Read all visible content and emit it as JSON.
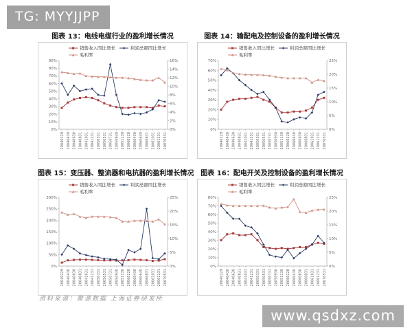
{
  "header": {
    "badge": "TG: MYYJJPP"
  },
  "footer": {
    "source": "资料来源：聚源数据 上海证券研发所"
  },
  "watermark": {
    "text": "www.qsdxz.com"
  },
  "colors": {
    "sales": "#a93c3c",
    "profit": "#2c3e66",
    "margin": "#cf9184",
    "axis": "#aaaaaa",
    "tick_text": "#666666",
    "legend_text": "#555555"
  },
  "legend_labels": {
    "sales": "销售收入同比增长",
    "profit": "利润总额同比增长",
    "margin": "毛利率"
  },
  "x_labels": [
    "20040229",
    "20040430",
    "20040630",
    "20040831",
    "20041031",
    "20041231",
    "20050331",
    "20050531",
    "20050731",
    "20050930",
    "20051130",
    "20060228",
    "20060430",
    "20060630",
    "20060831",
    "20061031",
    "20061231",
    "20070531"
  ],
  "chart_data": [
    {
      "type": "line",
      "title": "图表 13：电线电缆行业的盈利增长情况",
      "legend_position": "top",
      "grid": false,
      "categories": [
        "20040229",
        "20040430",
        "20040630",
        "20040831",
        "20041031",
        "20041231",
        "20050331",
        "20050531",
        "20050731",
        "20050930",
        "20051130",
        "20060228",
        "20060430",
        "20060630",
        "20060831",
        "20061031",
        "20061231",
        "20070531"
      ],
      "left_axis": {
        "min": 0,
        "max": 90,
        "step": 10,
        "suffix": "%"
      },
      "right_axis": {
        "min": 0,
        "max": 16,
        "step": 2,
        "suffix": "%"
      },
      "series": [
        {
          "key": "sales",
          "name": "销售收入同比增长",
          "axis": "left",
          "values": [
            28,
            35,
            39,
            41,
            42,
            41,
            38,
            34,
            31,
            29,
            28,
            28,
            29,
            29,
            29,
            28,
            31,
            30
          ]
        },
        {
          "key": "profit",
          "name": "利润总额同比增长",
          "axis": "left",
          "values": [
            60,
            45,
            57,
            50,
            52,
            53,
            45,
            44,
            85,
            45,
            20,
            19,
            21,
            20,
            22,
            26,
            38,
            36
          ]
        },
        {
          "key": "margin",
          "name": "毛利率",
          "axis": "right",
          "values": [
            13.3,
            13.1,
            12.9,
            13.0,
            12.4,
            12.3,
            12.2,
            12.2,
            12.1,
            12.0,
            12.0,
            11.9,
            11.7,
            11.5,
            11.4,
            11.4,
            12.0,
            10.9
          ]
        }
      ]
    },
    {
      "type": "line",
      "title": "图表 14：输配电及控制设备的盈利增长情况",
      "legend_position": "top",
      "grid": false,
      "categories": [
        "20040229",
        "20040430",
        "20040630",
        "20040831",
        "20041031",
        "20041231",
        "20050331",
        "20050531",
        "20050731",
        "20050930",
        "20051130",
        "20060228",
        "20060430",
        "20060630",
        "20060831",
        "20061031",
        "20061231",
        "20070531"
      ],
      "left_axis": {
        "min": 0,
        "max": 70,
        "step": 10,
        "suffix": "%"
      },
      "right_axis": {
        "min": 0,
        "max": 25,
        "step": 5,
        "suffix": "%"
      },
      "series": [
        {
          "key": "sales",
          "name": "销售收入同比增长",
          "axis": "left",
          "values": [
            20,
            28,
            30,
            31,
            31,
            32,
            33,
            30,
            28,
            22,
            17,
            17,
            18,
            18,
            19,
            22,
            30,
            32
          ]
        },
        {
          "key": "profit",
          "name": "利润总额同比增长",
          "axis": "left",
          "values": [
            55,
            62,
            57,
            50,
            45,
            40,
            36,
            38,
            30,
            22,
            8,
            7,
            10,
            12,
            11,
            17,
            35,
            38
          ]
        },
        {
          "key": "margin",
          "name": "毛利率",
          "axis": "right",
          "values": [
            22.0,
            21.5,
            20.5,
            20.1,
            19.9,
            19.8,
            19.8,
            19.7,
            19.5,
            19.1,
            18.8,
            18.6,
            18.6,
            18.6,
            18.6,
            17.0,
            18.0,
            17.6
          ]
        }
      ]
    },
    {
      "type": "line",
      "title": "图表 15：变压器、整流器和电抗器的盈利增长情况",
      "legend_position": "top",
      "grid": false,
      "categories": [
        "20040229",
        "20040430",
        "20040630",
        "20040831",
        "20041031",
        "20041231",
        "20050331",
        "20050531",
        "20050731",
        "20050930",
        "20051130",
        "20060228",
        "20060430",
        "20060630",
        "20060831",
        "20061031",
        "20061231",
        "20070531"
      ],
      "left_axis": {
        "min": 0,
        "max": 300,
        "step": 50,
        "suffix": "%"
      },
      "right_axis": {
        "min": 0,
        "max": 25,
        "step": 5,
        "suffix": "%"
      },
      "series": [
        {
          "key": "sales",
          "name": "销售收入同比增长",
          "axis": "left",
          "values": [
            15,
            25,
            27,
            28,
            28,
            27,
            26,
            25,
            25,
            24,
            25,
            26,
            28,
            27,
            26,
            22,
            24,
            30
          ]
        },
        {
          "key": "profit",
          "name": "利润总额同比增长",
          "axis": "left",
          "values": [
            50,
            90,
            75,
            55,
            48,
            42,
            38,
            32,
            30,
            28,
            5,
            70,
            60,
            75,
            250,
            35,
            30,
            55
          ]
        },
        {
          "key": "margin",
          "name": "毛利率",
          "axis": "right",
          "values": [
            19.5,
            18.7,
            19.0,
            18.0,
            17.5,
            18.0,
            18.0,
            18.0,
            17.8,
            17.5,
            16.2,
            16.2,
            16.5,
            16.5,
            16.4,
            16.2,
            17.0,
            15.2
          ]
        }
      ]
    },
    {
      "type": "line",
      "title": "图表 16：配电开关及控制设备的盈利增长情况",
      "legend_position": "top",
      "grid": false,
      "categories": [
        "20040229",
        "20040430",
        "20040630",
        "20040831",
        "20041031",
        "20041231",
        "20050331",
        "20050531",
        "20050731",
        "20050930",
        "20051130",
        "20060228",
        "20060430",
        "20060630",
        "20060831",
        "20061031",
        "20061231",
        "20070531"
      ],
      "left_axis": {
        "min": 0,
        "max": 80,
        "step": 10,
        "suffix": "%"
      },
      "right_axis": {
        "min": 0,
        "max": 25,
        "step": 5,
        "suffix": "%"
      },
      "series": [
        {
          "key": "sales",
          "name": "销售收入同比增长",
          "axis": "left",
          "values": [
            30,
            37,
            38,
            36,
            36,
            37,
            30,
            22,
            21,
            20,
            21,
            20,
            21,
            22,
            22,
            25,
            27,
            26
          ]
        },
        {
          "key": "profit",
          "name": "利润总额同比增长",
          "axis": "left",
          "values": [
            70,
            62,
            55,
            55,
            47,
            45,
            38,
            25,
            13,
            11,
            10,
            19,
            9,
            15,
            20,
            25,
            35,
            27
          ]
        },
        {
          "key": "margin",
          "name": "毛利率",
          "axis": "right",
          "values": [
            22.6,
            22.1,
            21.9,
            21.9,
            21.9,
            21.9,
            21.9,
            22.0,
            21.3,
            21.0,
            21.3,
            21.5,
            24.3,
            19.7,
            19.4,
            20.2,
            20.5,
            20.6
          ]
        }
      ]
    }
  ]
}
